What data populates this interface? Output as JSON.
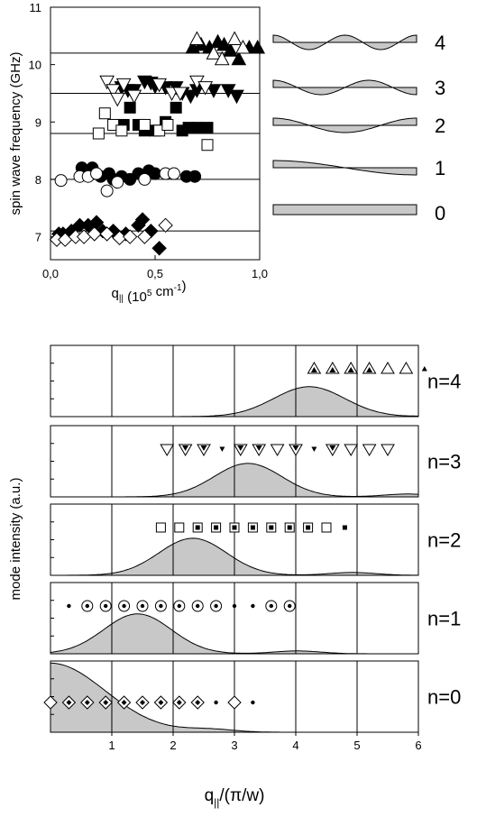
{
  "chart_data": [
    {
      "type": "scatter",
      "xlabel": "q",
      "xlabel_sub": "||",
      "xlabel_units_pre": " (10",
      "xlabel_units_exp": "5",
      "xlabel_units_mid": " cm",
      "xlabel_units_exp2": "-1",
      "xlabel_units_post": ")",
      "ylabel": "spin wave frequency (GHz)",
      "xlim": [
        0.0,
        1.0
      ],
      "ylim": [
        6.6,
        11.0
      ],
      "xticks": [
        "0,0",
        "0,5",
        "1,0"
      ],
      "yticks": [
        "7",
        "8",
        "9",
        "10",
        "11"
      ],
      "grid": false,
      "hlines": [
        7.1,
        8.0,
        8.8,
        9.5,
        10.2
      ],
      "series": [
        {
          "marker": "diamond",
          "filled": true,
          "points": [
            [
              0.04,
              7.05
            ],
            [
              0.06,
              7.05
            ],
            [
              0.1,
              7.1
            ],
            [
              0.14,
              7.2
            ],
            [
              0.18,
              7.2
            ],
            [
              0.22,
              7.25
            ],
            [
              0.25,
              7.1
            ],
            [
              0.3,
              7.1
            ],
            [
              0.36,
              7.05
            ],
            [
              0.42,
              7.2
            ],
            [
              0.44,
              7.3
            ],
            [
              0.48,
              7.1
            ],
            [
              0.52,
              6.8
            ]
          ]
        },
        {
          "marker": "diamond",
          "filled": false,
          "points": [
            [
              0.03,
              6.95
            ],
            [
              0.07,
              6.95
            ],
            [
              0.12,
              7.0
            ],
            [
              0.16,
              7.0
            ],
            [
              0.21,
              7.05
            ],
            [
              0.27,
              7.05
            ],
            [
              0.33,
              6.98
            ],
            [
              0.38,
              7.0
            ],
            [
              0.45,
              7.0
            ],
            [
              0.55,
              7.2
            ]
          ]
        },
        {
          "marker": "circle",
          "filled": true,
          "points": [
            [
              0.15,
              8.2
            ],
            [
              0.2,
              8.2
            ],
            [
              0.24,
              8.05
            ],
            [
              0.28,
              8.1
            ],
            [
              0.3,
              8.0
            ],
            [
              0.34,
              8.05
            ],
            [
              0.38,
              8.0
            ],
            [
              0.42,
              8.1
            ],
            [
              0.47,
              8.15
            ],
            [
              0.5,
              8.1
            ],
            [
              0.65,
              8.05
            ],
            [
              0.69,
              8.05
            ]
          ]
        },
        {
          "marker": "circle",
          "filled": false,
          "points": [
            [
              0.05,
              7.98
            ],
            [
              0.14,
              8.05
            ],
            [
              0.18,
              8.05
            ],
            [
              0.22,
              8.1
            ],
            [
              0.27,
              7.8
            ],
            [
              0.32,
              7.95
            ],
            [
              0.45,
              8.0
            ],
            [
              0.55,
              8.1
            ],
            [
              0.59,
              8.1
            ]
          ]
        },
        {
          "marker": "square",
          "filled": true,
          "points": [
            [
              0.35,
              8.95
            ],
            [
              0.38,
              9.25
            ],
            [
              0.42,
              8.95
            ],
            [
              0.45,
              8.85
            ],
            [
              0.5,
              8.85
            ],
            [
              0.55,
              9.0
            ],
            [
              0.6,
              9.25
            ],
            [
              0.63,
              8.85
            ],
            [
              0.66,
              8.9
            ],
            [
              0.7,
              8.9
            ],
            [
              0.75,
              8.9
            ]
          ]
        },
        {
          "marker": "square",
          "filled": false,
          "points": [
            [
              0.23,
              8.8
            ],
            [
              0.26,
              9.15
            ],
            [
              0.3,
              8.95
            ],
            [
              0.34,
              8.85
            ],
            [
              0.45,
              8.95
            ],
            [
              0.52,
              8.85
            ],
            [
              0.56,
              8.95
            ],
            [
              0.75,
              8.6
            ]
          ]
        },
        {
          "marker": "triangle-down",
          "filled": true,
          "points": [
            [
              0.34,
              9.6
            ],
            [
              0.37,
              9.55
            ],
            [
              0.4,
              9.55
            ],
            [
              0.45,
              9.7
            ],
            [
              0.48,
              9.68
            ],
            [
              0.5,
              9.62
            ],
            [
              0.55,
              9.6
            ],
            [
              0.6,
              9.6
            ],
            [
              0.63,
              9.5
            ],
            [
              0.67,
              9.45
            ],
            [
              0.7,
              9.55
            ],
            [
              0.78,
              9.55
            ],
            [
              0.85,
              9.55
            ],
            [
              0.89,
              9.45
            ]
          ]
        },
        {
          "marker": "triangle-down",
          "filled": false,
          "points": [
            [
              0.27,
              9.7
            ],
            [
              0.3,
              9.55
            ],
            [
              0.32,
              9.4
            ],
            [
              0.35,
              9.65
            ],
            [
              0.4,
              9.45
            ],
            [
              0.52,
              9.65
            ],
            [
              0.58,
              9.5
            ],
            [
              0.62,
              9.5
            ],
            [
              0.7,
              9.7
            ],
            [
              0.74,
              9.6
            ]
          ]
        },
        {
          "marker": "triangle-up",
          "filled": true,
          "points": [
            [
              0.68,
              10.3
            ],
            [
              0.72,
              10.35
            ],
            [
              0.76,
              10.3
            ],
            [
              0.8,
              10.4
            ],
            [
              0.83,
              10.35
            ],
            [
              0.86,
              10.25
            ],
            [
              0.9,
              10.1
            ],
            [
              0.95,
              10.3
            ],
            [
              0.99,
              10.3
            ]
          ]
        },
        {
          "marker": "triangle-up",
          "filled": false,
          "points": [
            [
              0.7,
              10.45
            ],
            [
              0.78,
              10.2
            ],
            [
              0.82,
              10.1
            ],
            [
              0.88,
              10.45
            ],
            [
              0.92,
              10.3
            ]
          ]
        }
      ]
    },
    {
      "type": "area",
      "xlabel": "q",
      "xlabel_sub": "||",
      "xlabel_post": "/(π/w)",
      "ylabel": "mode intensity (a.u.)",
      "xlim": [
        0,
        6
      ],
      "xticks": [
        "1",
        "2",
        "3",
        "4",
        "5",
        "6"
      ],
      "vlines": [
        1,
        2,
        3,
        4,
        5
      ],
      "panels": [
        {
          "label": "n=4",
          "peak": 4.22,
          "width": 0.82,
          "height": 0.42,
          "markers": [
            {
              "x": 4.3,
              "t": "triangle-dotted"
            },
            {
              "x": 4.6,
              "t": "triangle-dotted"
            },
            {
              "x": 4.9,
              "t": "triangle-dotted"
            },
            {
              "x": 5.2,
              "t": "triangle-dotted"
            },
            {
              "x": 5.5,
              "t": "triangle-open"
            },
            {
              "x": 5.8,
              "t": "triangle-open"
            },
            {
              "x": 6.1,
              "t": "triangle-small"
            }
          ]
        },
        {
          "label": "n=3",
          "peak": 3.22,
          "width": 0.78,
          "height": 0.47,
          "markers": [
            {
              "x": 1.9,
              "t": "tridown-open"
            },
            {
              "x": 2.2,
              "t": "tridown-dotted"
            },
            {
              "x": 2.5,
              "t": "tridown-dotted"
            },
            {
              "x": 2.8,
              "t": "tridown-small"
            },
            {
              "x": 3.1,
              "t": "tridown-dotted"
            },
            {
              "x": 3.4,
              "t": "tridown-dotted"
            },
            {
              "x": 3.7,
              "t": "tridown-open"
            },
            {
              "x": 4.0,
              "t": "tridown-dotted"
            },
            {
              "x": 4.3,
              "t": "tridown-small"
            },
            {
              "x": 4.6,
              "t": "tridown-dotted"
            },
            {
              "x": 4.9,
              "t": "tridown-open"
            },
            {
              "x": 5.2,
              "t": "tridown-open"
            },
            {
              "x": 5.5,
              "t": "tridown-open"
            }
          ]
        },
        {
          "label": "n=2",
          "peak": 2.32,
          "width": 0.78,
          "height": 0.52,
          "markers": [
            {
              "x": 1.8,
              "t": "square-open"
            },
            {
              "x": 2.1,
              "t": "square-open"
            },
            {
              "x": 2.4,
              "t": "square-dotted"
            },
            {
              "x": 2.7,
              "t": "square-dotted"
            },
            {
              "x": 3.0,
              "t": "square-dotted"
            },
            {
              "x": 3.3,
              "t": "square-dotted"
            },
            {
              "x": 3.6,
              "t": "square-dotted"
            },
            {
              "x": 3.9,
              "t": "square-dotted"
            },
            {
              "x": 4.2,
              "t": "square-dotted"
            },
            {
              "x": 4.5,
              "t": "square-open"
            },
            {
              "x": 4.8,
              "t": "square-small"
            }
          ]
        },
        {
          "label": "n=1",
          "peak": 1.42,
          "width": 0.78,
          "height": 0.56,
          "markers": [
            {
              "x": 0.3,
              "t": "dot"
            },
            {
              "x": 0.6,
              "t": "circle-dotted"
            },
            {
              "x": 0.9,
              "t": "circle-dotted"
            },
            {
              "x": 1.2,
              "t": "circle-dotted"
            },
            {
              "x": 1.5,
              "t": "circle-dotted"
            },
            {
              "x": 1.8,
              "t": "circle-dotted"
            },
            {
              "x": 2.1,
              "t": "circle-dotted"
            },
            {
              "x": 2.4,
              "t": "circle-dotted"
            },
            {
              "x": 2.7,
              "t": "circle-dotted"
            },
            {
              "x": 3.0,
              "t": "dot"
            },
            {
              "x": 3.3,
              "t": "dot"
            },
            {
              "x": 3.6,
              "t": "circle-dotted"
            },
            {
              "x": 3.9,
              "t": "circle-dotted"
            }
          ]
        },
        {
          "label": "n=0",
          "peak": 0.0,
          "width": 1.25,
          "height": 0.97,
          "markers": [
            {
              "x": 0.0,
              "t": "diamond-open"
            },
            {
              "x": 0.3,
              "t": "diamond-dotted"
            },
            {
              "x": 0.6,
              "t": "diamond-dotted"
            },
            {
              "x": 0.9,
              "t": "diamond-dotted"
            },
            {
              "x": 1.2,
              "t": "diamond-dotted"
            },
            {
              "x": 1.5,
              "t": "diamond-dotted"
            },
            {
              "x": 1.8,
              "t": "diamond-dotted"
            },
            {
              "x": 2.1,
              "t": "diamond-dotted"
            },
            {
              "x": 2.4,
              "t": "diamond-dotted"
            },
            {
              "x": 2.7,
              "t": "dot"
            },
            {
              "x": 3.0,
              "t": "diamond-open"
            },
            {
              "x": 3.3,
              "t": "dot"
            }
          ]
        }
      ]
    }
  ],
  "mode_profiles": {
    "labels": [
      "4",
      "3",
      "2",
      "1",
      "0"
    ],
    "modes": [
      4,
      3,
      2,
      1,
      0
    ]
  },
  "colors": {
    "fill": "#c8c8c8",
    "line": "#000000"
  }
}
